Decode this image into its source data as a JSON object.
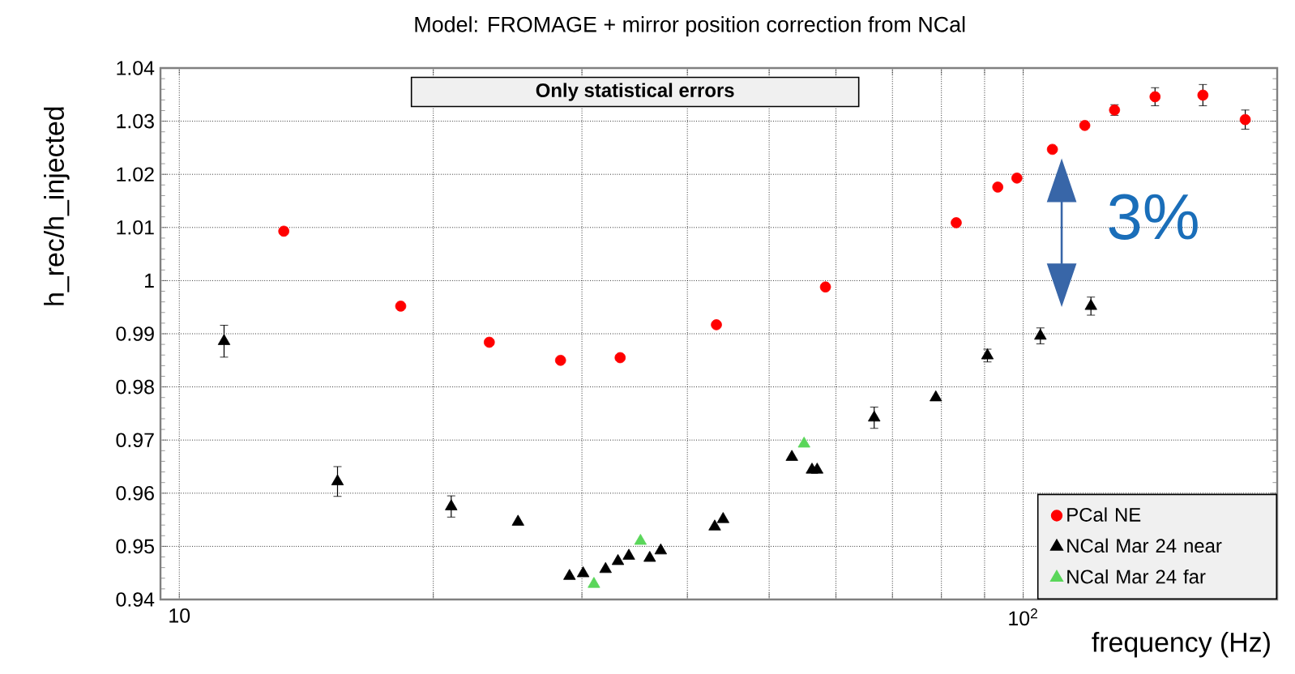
{
  "chart_data": {
    "type": "scatter",
    "title": "Model: FROMAGE + mirror position correction from NCal",
    "xlabel": "frequency (Hz)",
    "ylabel": "h_rec/h_injected",
    "log": "x",
    "grid": true,
    "legend": "bottom right",
    "xlim": [
      9.5,
      200
    ],
    "ylim": [
      0.94,
      1.04
    ],
    "xticks": [
      {
        "value": 10,
        "label": "10"
      },
      {
        "value": 20,
        "label": null
      },
      {
        "value": 30,
        "label": null
      },
      {
        "value": 40,
        "label": null
      },
      {
        "value": 50,
        "label": null
      },
      {
        "value": 60,
        "label": null
      },
      {
        "value": 70,
        "label": null
      },
      {
        "value": 80,
        "label": null
      },
      {
        "value": 90,
        "label": null
      },
      {
        "value": 100,
        "label": "10$^{2}$"
      }
    ],
    "yticks": [
      0.94,
      0.95,
      0.96,
      0.97,
      0.98,
      0.99,
      1,
      1.01,
      1.02,
      1.03,
      1.04
    ],
    "annotations": [
      "Only statistical errors",
      "3%"
    ],
    "series": [
      {
        "name": "PCal NE",
        "color": "#ff0000",
        "marker": "circle",
        "x": [
          13.3,
          18.3,
          23.3,
          28.3,
          33.3,
          43.3,
          58.3,
          83.3,
          93.3,
          98.3,
          108.3,
          118.3,
          128.3,
          143.3,
          163.3,
          183.3
        ],
        "values": [
          1.0093,
          0.9952,
          0.9884,
          0.985,
          0.9855,
          0.9917,
          0.9988,
          1.0109,
          1.0176,
          1.0193,
          1.0247,
          1.0292,
          1.0321,
          1.0346,
          1.0349,
          1.0303
        ],
        "errors": [
          null,
          null,
          null,
          null,
          null,
          null,
          null,
          null,
          null,
          null,
          null,
          null,
          0.001,
          0.0017,
          0.002,
          0.0018
        ]
      },
      {
        "name": "NCal Mar 24 near",
        "color": "#000000",
        "marker": "triangle",
        "x": [
          11.3,
          15.4,
          21.0,
          25.2,
          29.0,
          30.1,
          32.0,
          33.1,
          34.1,
          36.1,
          37.2,
          43.1,
          44.1,
          53.2,
          56.2,
          57.0,
          66.6,
          78.8,
          90.7,
          104.8,
          120.3
        ],
        "values": [
          0.9886,
          0.9622,
          0.9575,
          0.9546,
          0.9444,
          0.9449,
          0.9457,
          0.9472,
          0.9482,
          0.9478,
          0.9492,
          0.9537,
          0.9551,
          0.9668,
          0.9644,
          0.9644,
          0.9742,
          0.978,
          0.9859,
          0.9896,
          0.9952
        ],
        "errors": [
          0.003,
          0.0028,
          0.002,
          null,
          null,
          null,
          null,
          null,
          null,
          null,
          null,
          null,
          null,
          null,
          null,
          null,
          0.002,
          null,
          0.0012,
          0.0015,
          0.0017
        ]
      },
      {
        "name": "NCal Mar 24 far",
        "color": "#5ad65a",
        "marker": "triangle",
        "x": [
          31.0,
          35.2,
          55.0
        ],
        "values": [
          0.9429,
          0.951,
          0.9693
        ]
      }
    ]
  }
}
